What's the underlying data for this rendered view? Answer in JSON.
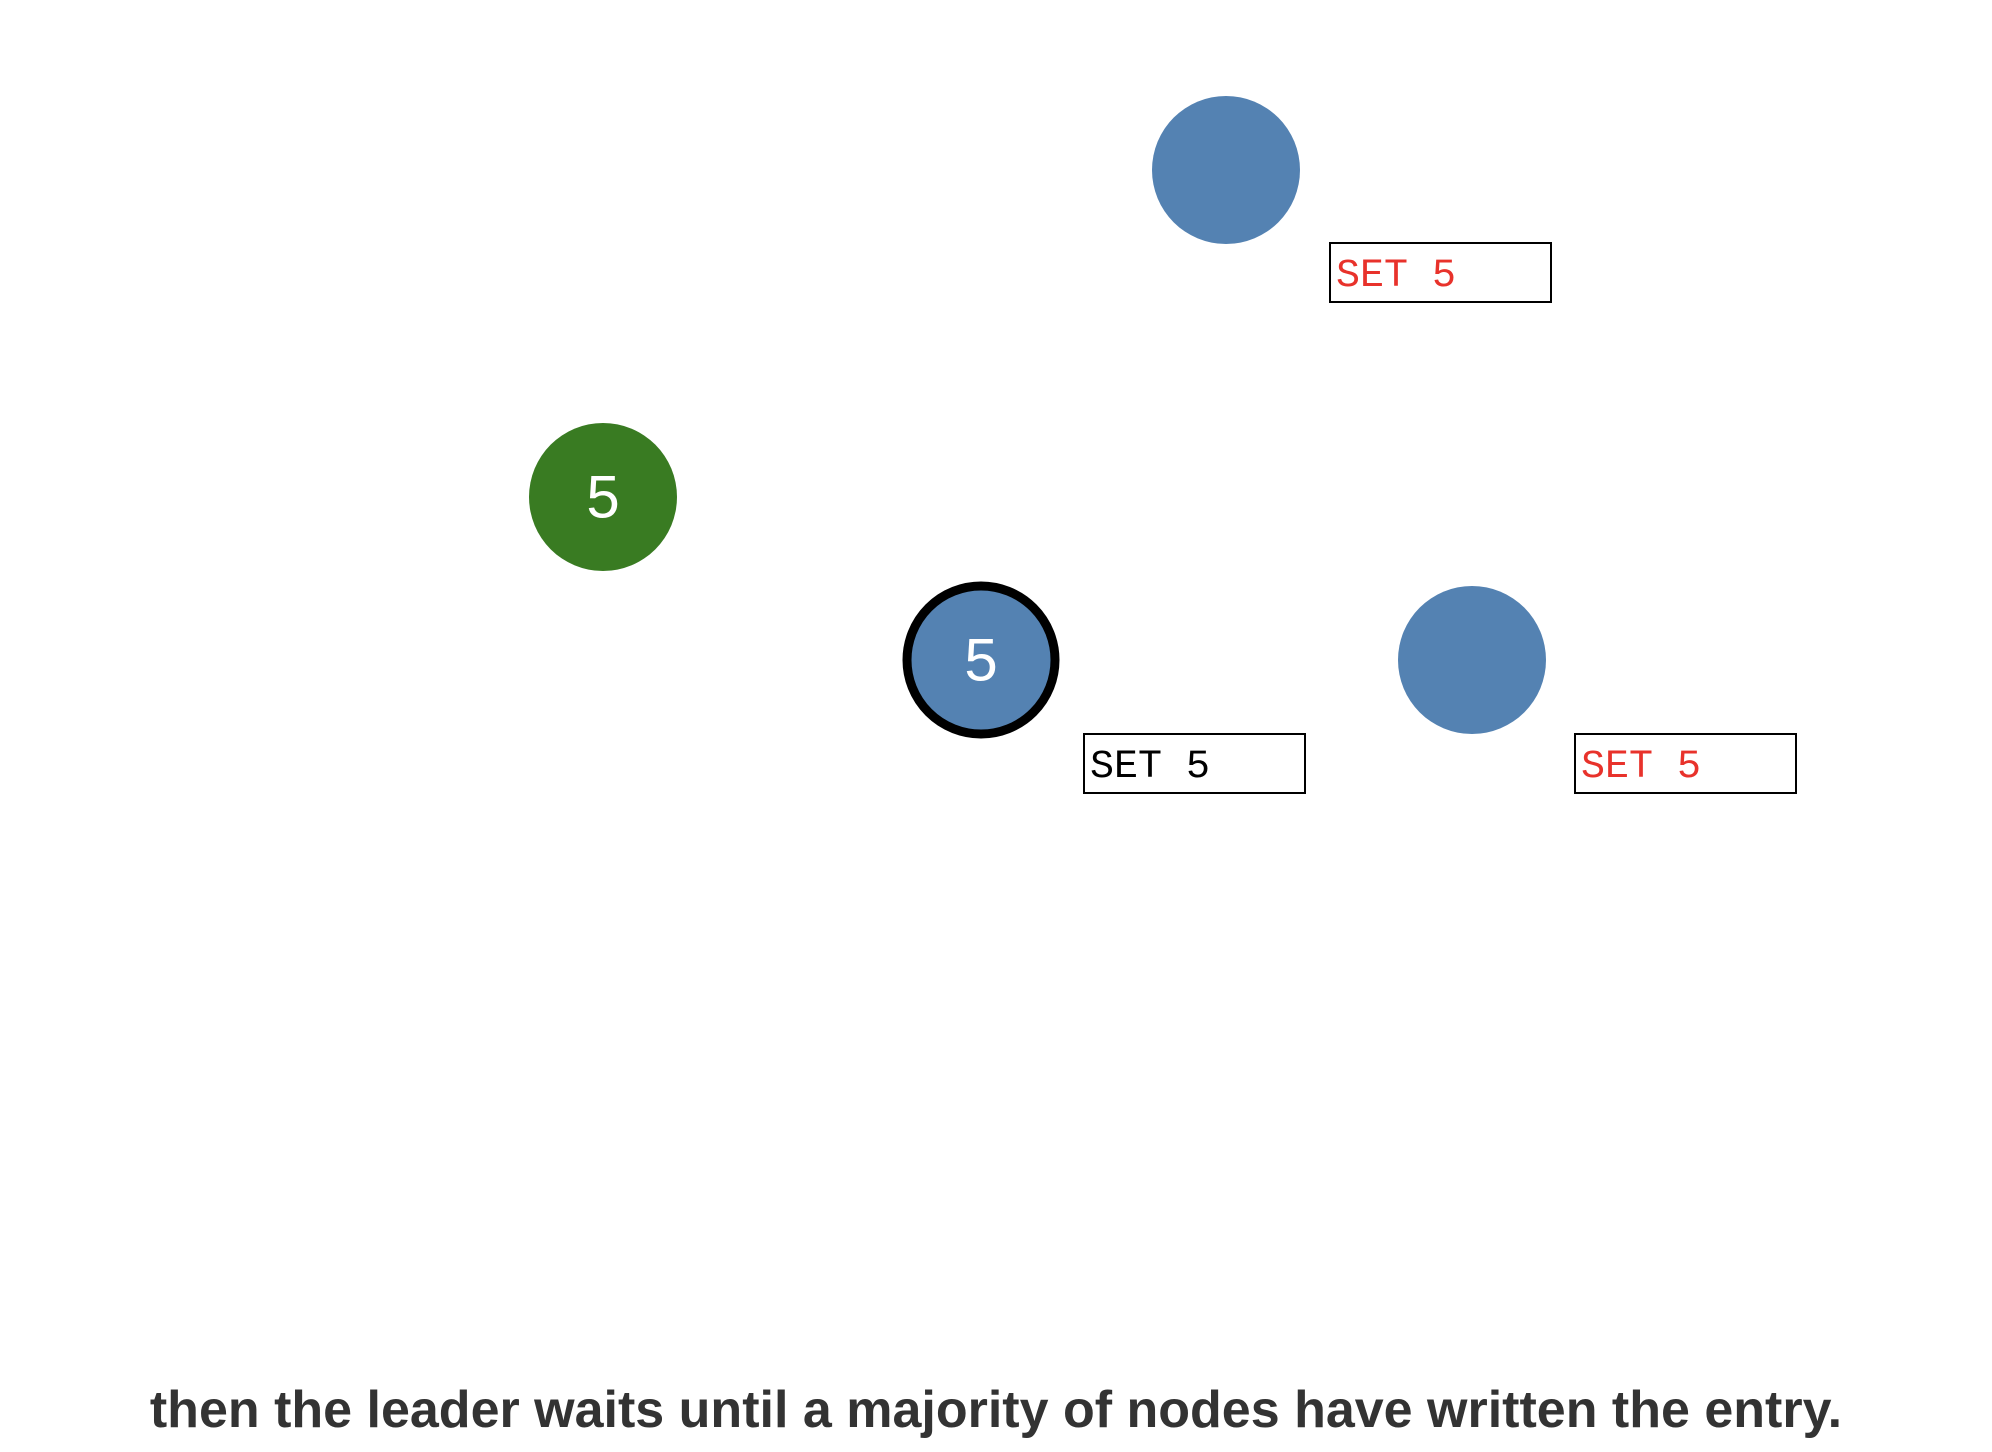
{
  "colors": {
    "node_fill": "#5482b2",
    "client_fill": "#397b22",
    "leader_stroke": "#000000",
    "uncommitted_text": "#e8322b",
    "committed_text": "#000000",
    "log_box_stroke": "#000000",
    "caption_text": "#333333"
  },
  "client": {
    "value": "5"
  },
  "nodes": [
    {
      "id": "node-top",
      "value": "",
      "is_leader": false,
      "log_entry": "SET 5",
      "log_state": "uncommitted"
    },
    {
      "id": "node-leader",
      "value": "5",
      "is_leader": true,
      "log_entry": "SET 5",
      "log_state": "committed"
    },
    {
      "id": "node-right",
      "value": "",
      "is_leader": false,
      "log_entry": "SET 5",
      "log_state": "uncommitted"
    }
  ],
  "caption": "then the leader waits until a majority of nodes have written the entry."
}
